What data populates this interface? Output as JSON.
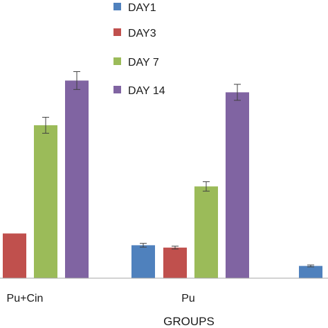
{
  "chart_data": {
    "type": "bar",
    "title": "",
    "xlabel": "GROUPS",
    "ylabel": "",
    "categories": [
      "Pu+Cin",
      "Pu",
      ""
    ],
    "series": [
      {
        "name": "DAY1",
        "color": "#4f81bd",
        "values": [
          null,
          7.0,
          null
        ],
        "errors": [
          null,
          0.4,
          null
        ]
      },
      {
        "name": "DAY3",
        "color": "#c0504d",
        "values": [
          9.5,
          6.5,
          null
        ],
        "errors": [
          null,
          0.3,
          null
        ]
      },
      {
        "name": "DAY 7",
        "color": "#9bbb59",
        "values": [
          32.5,
          19.5,
          null
        ],
        "errors": [
          1.7,
          1.0,
          null
        ]
      },
      {
        "name": "DAY 14",
        "color": "#8064a2",
        "values": [
          42.0,
          39.5,
          null
        ],
        "errors": [
          1.9,
          1.7,
          null
        ]
      }
    ],
    "trailing_bar": {
      "color": "#4f81bd",
      "value": 2.6,
      "error": 0.2
    },
    "ylim": [
      0,
      50
    ],
    "grid": false,
    "legend_position": "top-center"
  }
}
